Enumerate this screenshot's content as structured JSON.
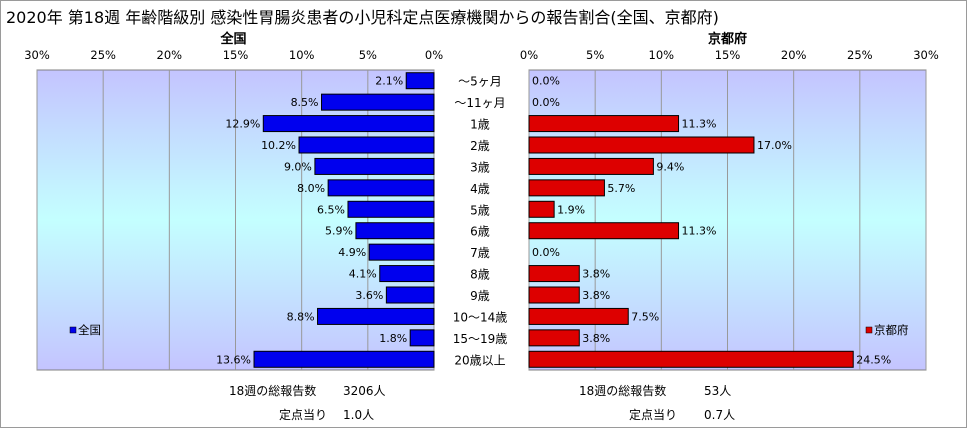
{
  "title": "2020年 第18週 年齢階級別 感染性胃腸炎患者の小児科定点医療機関からの報告割合(全国、京都府)",
  "colors": {
    "left_bar": "#0000ee",
    "right_bar": "#dd0000",
    "plot_bg_top": "#c4c4ff",
    "plot_bg_mid": "#c4ffff",
    "gridline": "#999999"
  },
  "chart_data": [
    {
      "type": "bar",
      "orientation": "horizontal",
      "direction": "right-to-left",
      "title": "全国",
      "legend": "全国",
      "legend_position": "bottom-left",
      "xlim": [
        0,
        30
      ],
      "ticks": [
        "0%",
        "5%",
        "10%",
        "15%",
        "20%",
        "25%",
        "30%"
      ],
      "grid": true,
      "categories": [
        "～5ヶ月",
        "～11ヶ月",
        "1歳",
        "2歳",
        "3歳",
        "4歳",
        "5歳",
        "6歳",
        "7歳",
        "8歳",
        "9歳",
        "10～14歳",
        "15～19歳",
        "20歳以上"
      ],
      "values": [
        2.1,
        8.5,
        12.9,
        10.2,
        9.0,
        8.0,
        6.5,
        5.9,
        4.9,
        4.1,
        3.6,
        8.8,
        1.8,
        13.6
      ],
      "data_labels": [
        "2.1%",
        "8.5%",
        "12.9%",
        "10.2%",
        "9.0%",
        "8.0%",
        "6.5%",
        "5.9%",
        "4.9%",
        "4.1%",
        "3.6%",
        "8.8%",
        "1.8%",
        "13.6%"
      ]
    },
    {
      "type": "bar",
      "orientation": "horizontal",
      "direction": "left-to-right",
      "title": "京都府",
      "legend": "京都府",
      "legend_position": "bottom-right",
      "xlim": [
        0,
        30
      ],
      "ticks": [
        "0%",
        "5%",
        "10%",
        "15%",
        "20%",
        "25%",
        "30%"
      ],
      "grid": true,
      "categories": [
        "～5ヶ月",
        "～11ヶ月",
        "1歳",
        "2歳",
        "3歳",
        "4歳",
        "5歳",
        "6歳",
        "7歳",
        "8歳",
        "9歳",
        "10～14歳",
        "15～19歳",
        "20歳以上"
      ],
      "values": [
        0.0,
        0.0,
        11.3,
        17.0,
        9.4,
        5.7,
        1.9,
        11.3,
        0.0,
        3.8,
        3.8,
        7.5,
        3.8,
        24.5
      ],
      "data_labels": [
        "0.0%",
        "0.0%",
        "11.3%",
        "17.0%",
        "9.4%",
        "5.7%",
        "1.9%",
        "11.3%",
        "0.0%",
        "3.8%",
        "3.8%",
        "7.5%",
        "3.8%",
        "24.5%"
      ]
    }
  ],
  "footer": {
    "national": {
      "total_label": "18週の総報告数",
      "total_value": "3206人",
      "per_label": "定点当り",
      "per_value": "1.0人"
    },
    "kyoto": {
      "total_label": "18週の総報告数",
      "total_value": "53人",
      "per_label": "定点当り",
      "per_value": "0.7人"
    }
  }
}
